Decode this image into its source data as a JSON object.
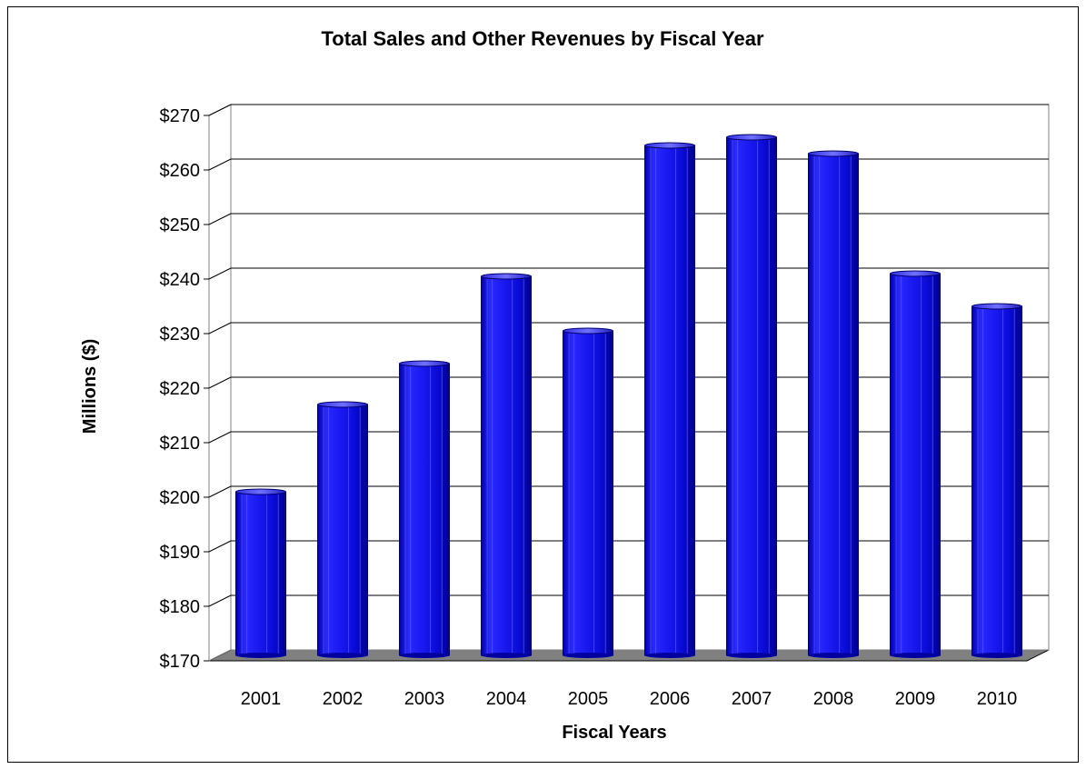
{
  "chart_data": {
    "type": "bar",
    "title": "Total Sales and Other Revenues by Fiscal Year",
    "xlabel": "Fiscal Years",
    "ylabel": "Millions ($)",
    "categories": [
      "2001",
      "2002",
      "2003",
      "2004",
      "2005",
      "2006",
      "2007",
      "2008",
      "2009",
      "2010"
    ],
    "values": [
      200,
      216,
      223.5,
      239.5,
      229.5,
      263.5,
      265,
      262,
      240,
      234
    ],
    "ylim": [
      170,
      270
    ],
    "ytick_values": [
      170,
      180,
      190,
      200,
      210,
      220,
      230,
      240,
      250,
      260,
      270
    ],
    "ytick_labels": [
      "$170",
      "$180",
      "$190",
      "$200",
      "$210",
      "$220",
      "$230",
      "$240",
      "$250",
      "$260",
      "$270"
    ],
    "grid": true,
    "legend": "none",
    "bar_color": "#1010e0",
    "floor_color": "#808080"
  }
}
